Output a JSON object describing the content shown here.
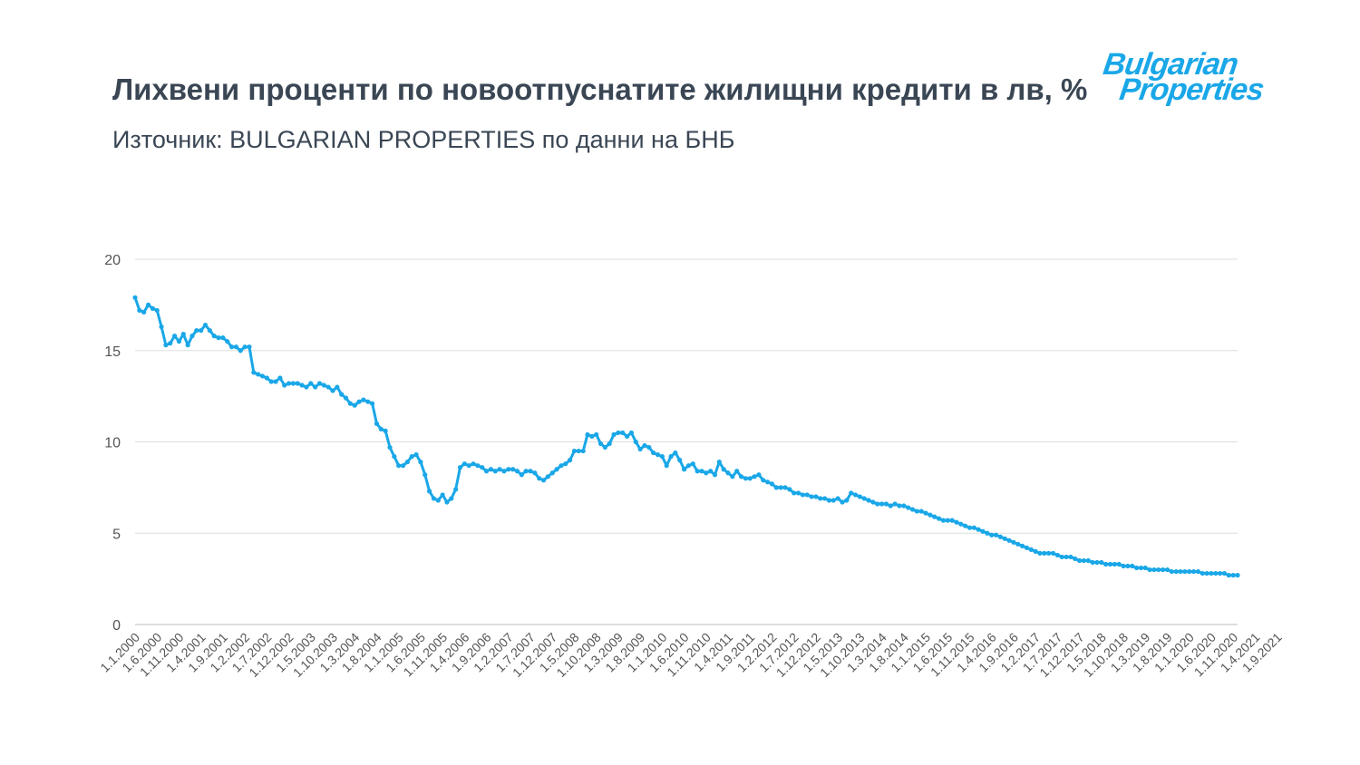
{
  "header": {
    "title": "Лихвени проценти по новоотпуснатите жилищни кредити в лв, %",
    "subtitle": "Източник: BULGARIAN PROPERTIES по данни на БНБ"
  },
  "logo": {
    "line1": "Bulgarian",
    "line2": "Properties"
  },
  "colors": {
    "line": "#1aa7e8",
    "grid": "#dddddd",
    "axis": "#bbbbbb",
    "text": "#3a4654",
    "ticks": "#555555"
  },
  "chart_data": {
    "type": "line",
    "title": "Лихвени проценти по новоотпуснатите жилищни кредити в лв, %",
    "xlabel": "",
    "ylabel": "",
    "ylim": [
      0,
      20
    ],
    "yticks": [
      0,
      5,
      10,
      15,
      20
    ],
    "grid": true,
    "legend": "none",
    "x_start": "1.1.2000",
    "x_labels": [
      "1.1.2000",
      "1.6.2000",
      "1.11.2000",
      "1.4.2001",
      "1.9.2001",
      "1.2.2002",
      "1.7.2002",
      "1.12.2002",
      "1.5.2003",
      "1.10.2003",
      "1.3.2004",
      "1.8.2004",
      "1.1.2005",
      "1.6.2005",
      "1.11.2005",
      "1.4.2006",
      "1.9.2006",
      "1.2.2007",
      "1.7.2007",
      "1.12.2007",
      "1.5.2008",
      "1.10.2008",
      "1.3.2009",
      "1.8.2009",
      "1.1.2010",
      "1.6.2010",
      "1.11.2010",
      "1.4.2011",
      "1.9.2011",
      "1.2.2012",
      "1.7.2012",
      "1.12.2012",
      "1.5.2013",
      "1.10.2013",
      "1.3.2014",
      "1.8.2014",
      "1.1.2015",
      "1.6.2015",
      "1.11.2015",
      "1.4.2016",
      "1.9.2016",
      "1.2.2017",
      "1.7.2017",
      "1.12.2017",
      "1.5.2018",
      "1.10.2018",
      "1.3.2019",
      "1.8.2019",
      "1.1.2020",
      "1.6.2020",
      "1.11.2020",
      "1.4.2021",
      "1.9.2021"
    ],
    "series": [
      {
        "values": [
          17.9,
          17.2,
          17.1,
          17.5,
          17.3,
          17.2,
          16.3,
          15.3,
          15.4,
          15.8,
          15.5,
          15.9,
          15.3,
          15.8,
          16.1,
          16.1,
          16.4,
          16.1,
          15.8,
          15.7,
          15.7,
          15.5,
          15.2,
          15.2,
          15.0,
          15.2,
          15.2,
          13.8,
          13.7,
          13.6,
          13.5,
          13.3,
          13.3,
          13.5,
          13.1,
          13.2,
          13.2,
          13.2,
          13.1,
          13.0,
          13.2,
          13.0,
          13.2,
          13.1,
          13.0,
          12.8,
          13.0,
          12.6,
          12.4,
          12.1,
          12.0,
          12.2,
          12.3,
          12.2,
          12.1,
          11.0,
          10.7,
          10.6,
          9.7,
          9.2,
          8.7,
          8.7,
          8.9,
          9.2,
          9.3,
          8.9,
          8.2,
          7.3,
          6.9,
          6.8,
          7.1,
          6.7,
          6.9,
          7.4,
          8.6,
          8.8,
          8.7,
          8.8,
          8.7,
          8.6,
          8.4,
          8.5,
          8.4,
          8.5,
          8.4,
          8.5,
          8.5,
          8.4,
          8.2,
          8.4,
          8.4,
          8.3,
          8.0,
          7.9,
          8.1,
          8.3,
          8.5,
          8.7,
          8.8,
          9.0,
          9.5,
          9.5,
          9.5,
          10.4,
          10.3,
          10.4,
          9.9,
          9.7,
          9.9,
          10.4,
          10.5,
          10.5,
          10.3,
          10.5,
          10.0,
          9.6,
          9.8,
          9.7,
          9.4,
          9.3,
          9.2,
          8.7,
          9.2,
          9.4,
          9.0,
          8.5,
          8.7,
          8.8,
          8.4,
          8.4,
          8.3,
          8.4,
          8.2,
          8.9,
          8.5,
          8.3,
          8.1,
          8.4,
          8.1,
          8.0,
          8.0,
          8.1,
          8.2,
          7.9,
          7.8,
          7.7,
          7.5,
          7.5,
          7.5,
          7.4,
          7.2,
          7.2,
          7.1,
          7.1,
          7.0,
          7.0,
          6.9,
          6.9,
          6.8,
          6.8,
          6.9,
          6.7,
          6.8,
          7.2,
          7.1,
          7.0,
          6.9,
          6.8,
          6.7,
          6.6,
          6.6,
          6.6,
          6.5,
          6.6,
          6.5,
          6.5,
          6.4,
          6.3,
          6.2,
          6.2,
          6.1,
          6.0,
          5.9,
          5.8,
          5.7,
          5.7,
          5.7,
          5.6,
          5.5,
          5.4,
          5.3,
          5.3,
          5.2,
          5.1,
          5.0,
          4.9,
          4.9,
          4.8,
          4.7,
          4.6,
          4.5,
          4.4,
          4.3,
          4.2,
          4.1,
          4.0,
          3.9,
          3.9,
          3.9,
          3.9,
          3.8,
          3.7,
          3.7,
          3.7,
          3.6,
          3.5,
          3.5,
          3.5,
          3.4,
          3.4,
          3.4,
          3.3,
          3.3,
          3.3,
          3.3,
          3.2,
          3.2,
          3.2,
          3.1,
          3.1,
          3.1,
          3.0,
          3.0,
          3.0,
          3.0,
          3.0,
          2.9,
          2.9,
          2.9,
          2.9,
          2.9,
          2.9,
          2.9,
          2.8,
          2.8,
          2.8,
          2.8,
          2.8,
          2.8,
          2.7,
          2.7,
          2.7
        ]
      }
    ]
  }
}
